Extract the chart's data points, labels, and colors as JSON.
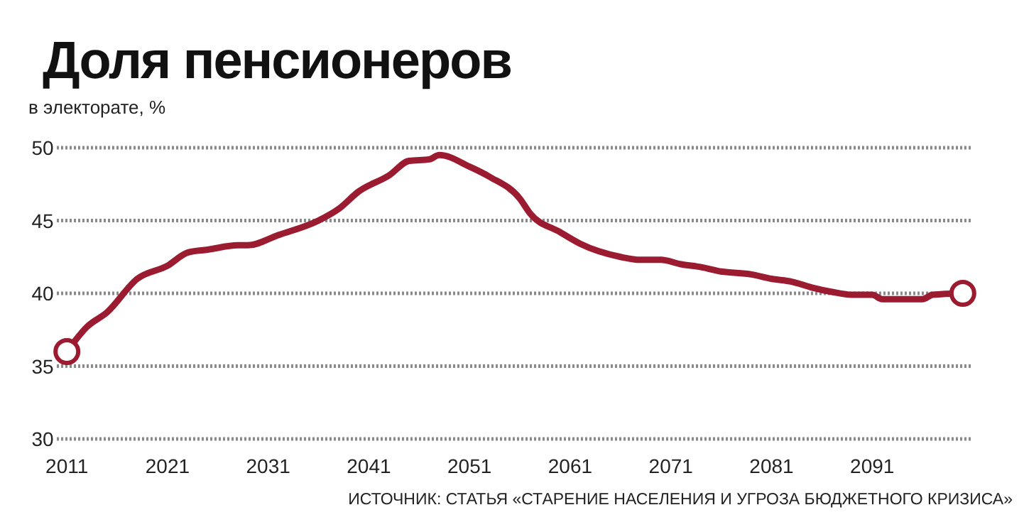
{
  "chart_data": {
    "type": "line",
    "title": "Доля пенсионеров",
    "ylabel": "в электорате, %",
    "annotations": [
      "ИСТОЧНИК: СТАТЬЯ «СТАРЕНИЕ НАСЕЛЕНИЯ И УГРОЗА БЮДЖЕТНОГО КРИЗИСА»"
    ],
    "series": [
      {
        "color": "#9b1b30",
        "x": [
          2011,
          2013,
          2015,
          2018,
          2021,
          2023,
          2025,
          2028,
          2029,
          2032,
          2036,
          2038,
          2040,
          2043,
          2045,
          2047,
          2048,
          2051,
          2053,
          2056,
          2057,
          2060,
          2062,
          2066,
          2068,
          2070,
          2072,
          2074,
          2076,
          2079,
          2081,
          2083,
          2085,
          2087,
          2089,
          2091,
          2092,
          2096,
          2097,
          2100
        ],
        "values": [
          36.0,
          37.7,
          38.7,
          41.0,
          41.9,
          42.8,
          43.0,
          43.3,
          43.3,
          44.0,
          45.0,
          45.8,
          47.0,
          48.1,
          49.1,
          49.2,
          49.5,
          48.7,
          48.0,
          46.5,
          45.5,
          44.2,
          43.4,
          42.5,
          42.3,
          42.3,
          42.0,
          41.8,
          41.5,
          41.3,
          41.0,
          40.8,
          40.4,
          40.1,
          39.9,
          39.9,
          39.6,
          39.6,
          39.9,
          40.0
        ]
      }
    ],
    "xlim": [
      2010,
      2101
    ],
    "ylim": [
      30,
      50
    ],
    "xticks": [
      2011,
      2021,
      2031,
      2041,
      2051,
      2061,
      2071,
      2081,
      2091
    ],
    "yticks": [
      30,
      35,
      40,
      45,
      50
    ],
    "grid": "y",
    "marker": "none",
    "line_style": "solid"
  }
}
